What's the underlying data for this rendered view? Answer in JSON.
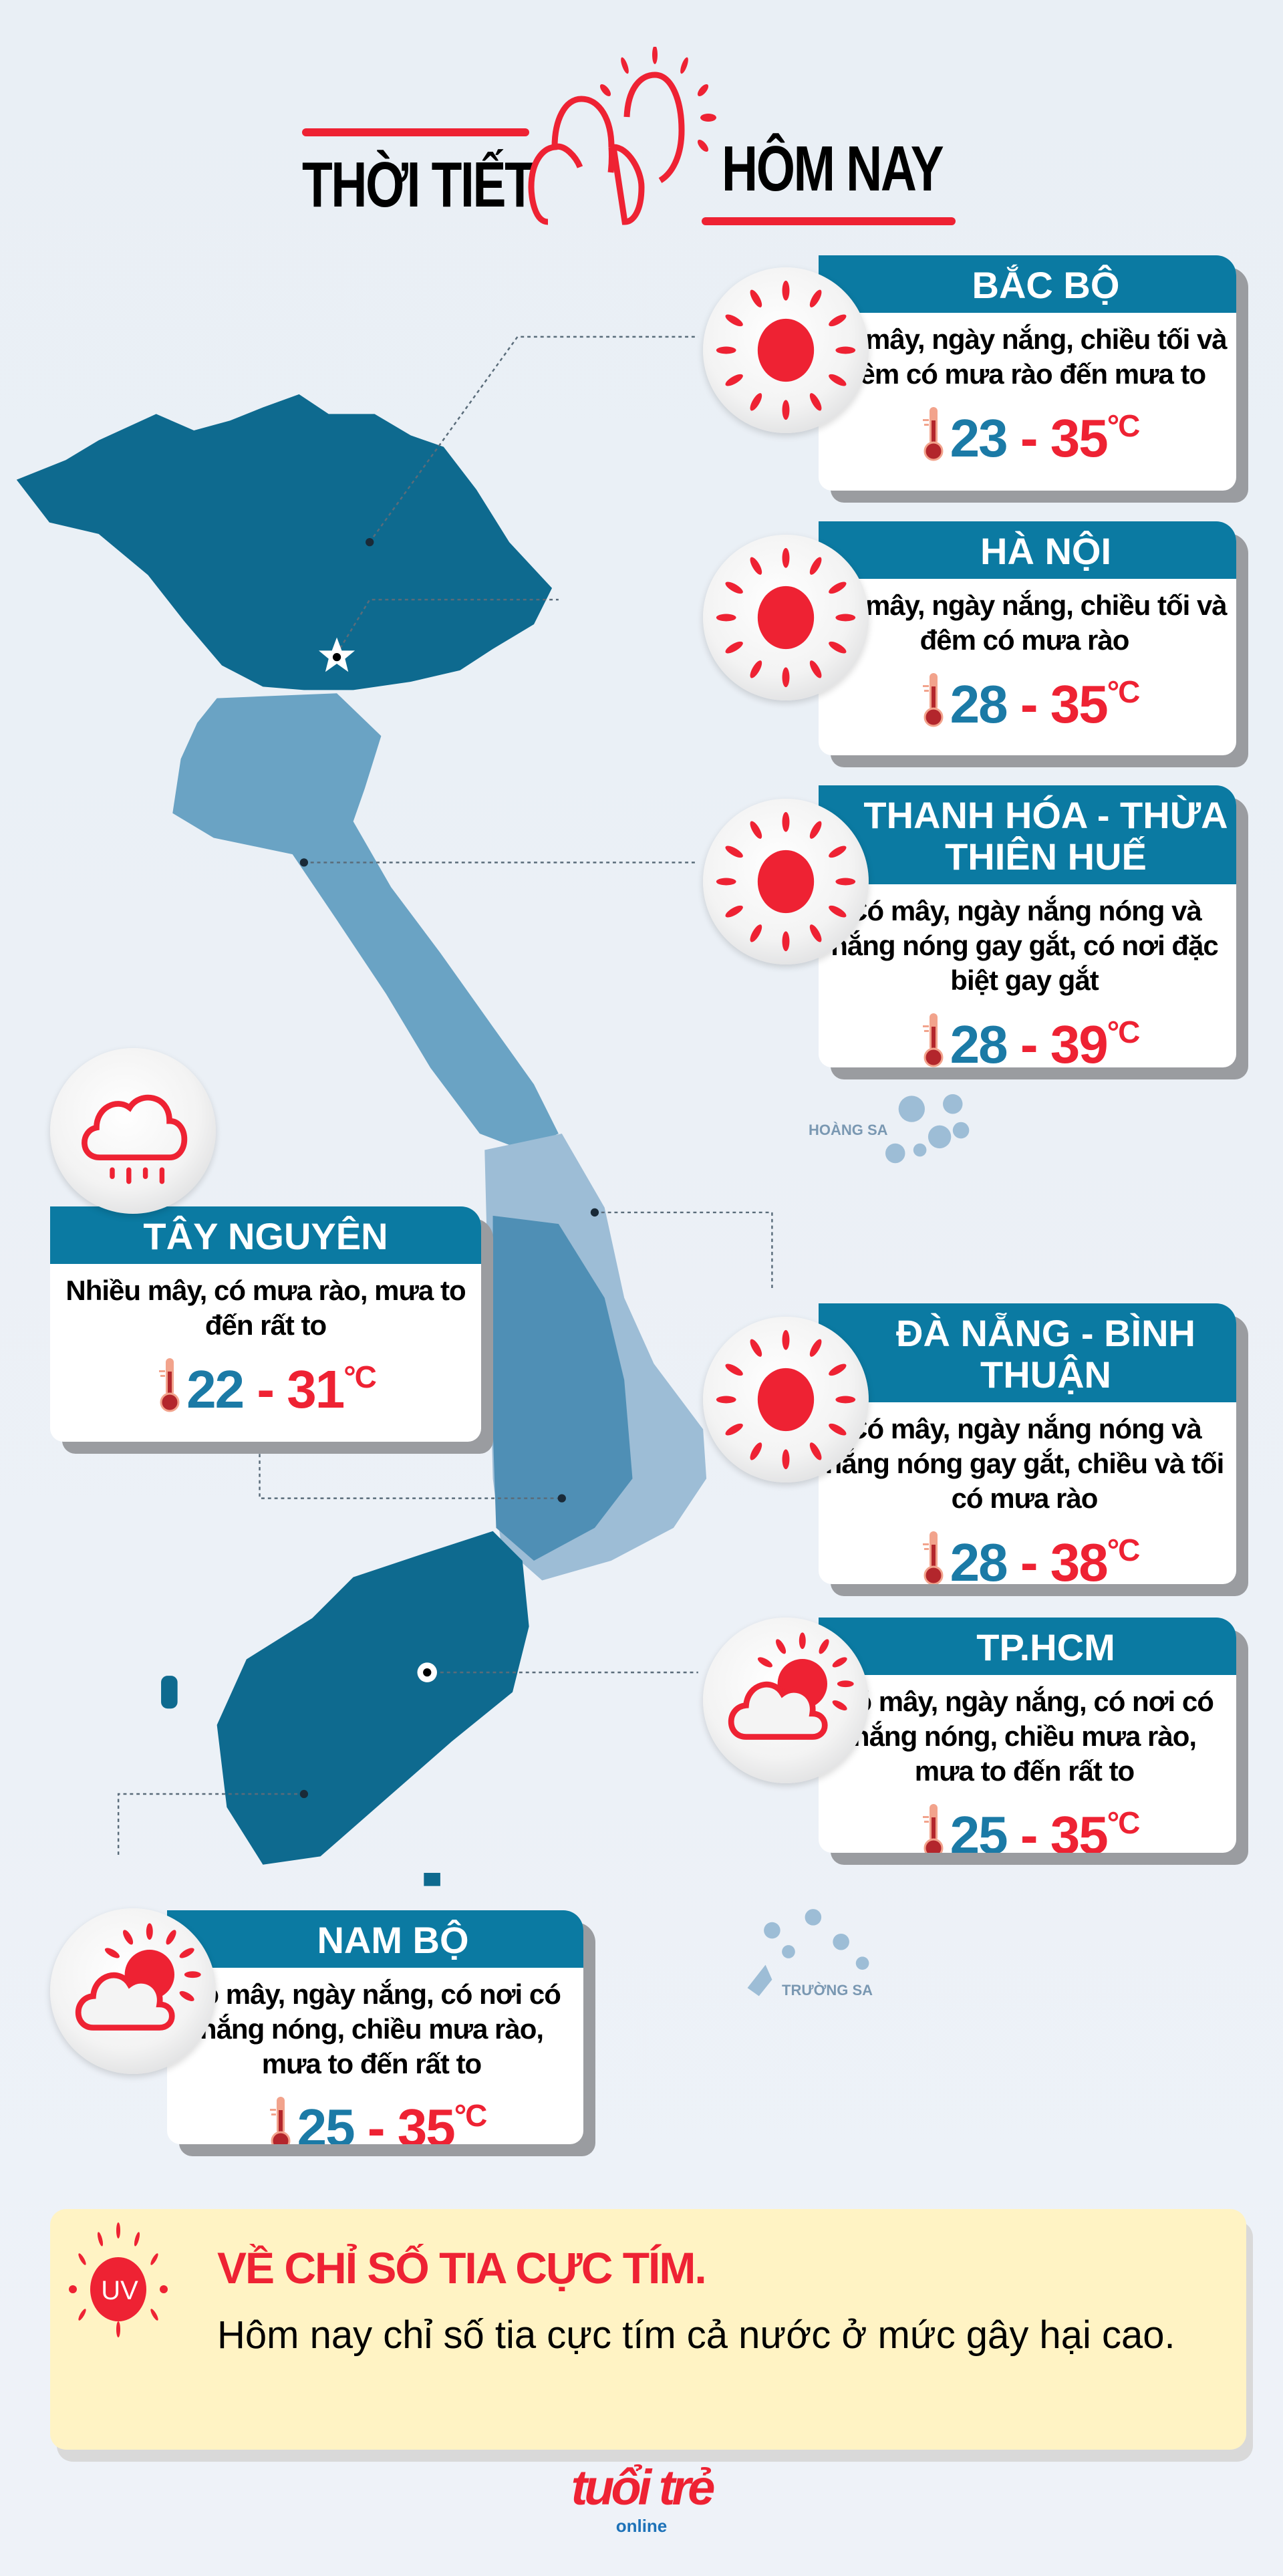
{
  "header": {
    "title_left": "THỜI TIẾT",
    "title_right": "HÔM NAY",
    "icon": "sun-cloud-outline-icon",
    "accent": "#ee2233"
  },
  "colors": {
    "card_header": "#0b7aa2",
    "temp_low": "#1b7aa6",
    "temp_high": "#ee2233",
    "map_dark": "#0e6a8f",
    "map_mid": "#4f8fb5",
    "map_light": "#6aa3c4",
    "map_pale": "#9dbdd6"
  },
  "cards": [
    {
      "region": "BẮC BỘ",
      "icon": "sun-icon",
      "description": "Có mây, ngày nắng, chiều tối và đêm có mưa rào đến mưa to",
      "low": "23",
      "high": "35",
      "unit": "°C"
    },
    {
      "region": "HÀ NỘI",
      "icon": "sun-icon",
      "description": "Có mây, ngày nắng, chiều tối và đêm có mưa rào",
      "low": "28",
      "high": "35",
      "unit": "°C"
    },
    {
      "region": "THANH HÓA - THỪA THIÊN HUẾ",
      "icon": "sun-icon",
      "description": "Có mây, ngày nắng nóng và nắng nóng gay gắt, có nơi đặc biệt gay gắt",
      "low": "28",
      "high": "39",
      "unit": "°C"
    },
    {
      "region": "TÂY NGUYÊN",
      "icon": "rain-cloud-icon",
      "description": "Nhiều mây, có mưa rào, mưa to đến rất to",
      "low": "22",
      "high": "31",
      "unit": "°C"
    },
    {
      "region": "ĐÀ NẴNG - BÌNH THUẬN",
      "icon": "sun-icon",
      "description": "Có mây, ngày nắng nóng và nắng nóng gay gắt, chiều và tối có mưa rào",
      "low": "28",
      "high": "38",
      "unit": "°C"
    },
    {
      "region": "TP.HCM",
      "icon": "sun-cloud-icon",
      "description": "Có mây, ngày nắng, có nơi có nắng nóng, chiều mưa rào, mưa to đến rất to",
      "low": "25",
      "high": "35",
      "unit": "°C"
    },
    {
      "region": "NAM BỘ",
      "icon": "sun-cloud-icon",
      "description": "Có mây, ngày nắng, có nơi có nắng nóng, chiều mưa rào, mưa to đến rất to",
      "low": "25",
      "high": "35",
      "unit": "°C"
    }
  ],
  "map": {
    "islands": [
      "HOÀNG SA",
      "TRƯỜNG SA"
    ]
  },
  "uv": {
    "badge": "UV",
    "title": "VỀ CHỈ SỐ TIA CỰC TÍM.",
    "text": "Hôm nay chỉ số tia cực tím cả nước ở mức gây hại cao."
  },
  "footer": {
    "logo": "tuổi trẻ online"
  }
}
